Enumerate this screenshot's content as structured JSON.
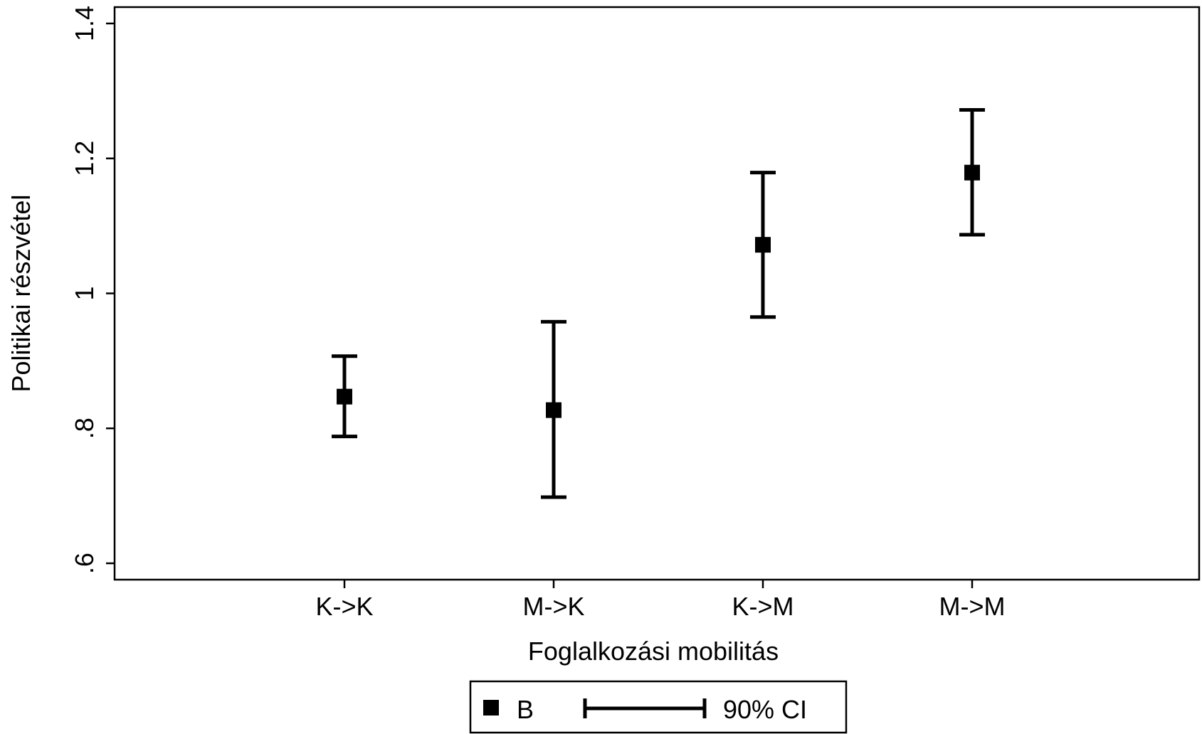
{
  "chart_data": {
    "type": "scatter",
    "categories": [
      "K->K",
      "M->K",
      "K->M",
      "M->M"
    ],
    "series": [
      {
        "name": "B",
        "values": [
          0.847,
          0.827,
          1.072,
          1.179
        ],
        "ci_low": [
          0.788,
          0.698,
          0.965,
          1.087
        ],
        "ci_high": [
          0.907,
          0.958,
          1.179,
          1.272
        ]
      }
    ],
    "xlabel": "Foglalkozási mobilitás",
    "ylabel": "Politikai részvétel",
    "ylim": [
      0.575,
      1.425
    ],
    "yticks": [
      0.6,
      0.8,
      1.0,
      1.2,
      1.4
    ],
    "ytick_labels": [
      ".6",
      ".8",
      "1",
      "1.2",
      "1.4"
    ],
    "grid": false,
    "legend": {
      "placement": "bottom-center",
      "entries": [
        {
          "label": "B",
          "marker": "square"
        },
        {
          "label": "90% CI",
          "marker": "capped-line"
        }
      ]
    },
    "colors": {
      "marker": "#000000",
      "axis": "#000000",
      "background": "#ffffff"
    }
  }
}
